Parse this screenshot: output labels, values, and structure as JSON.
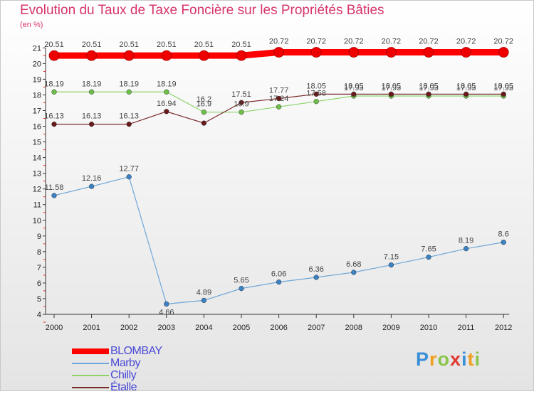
{
  "header": {
    "title": "Evolution du Taux de Taxe Foncière sur les Propriétés Bâties",
    "subtitle": "(en %)"
  },
  "chart_data": {
    "type": "line",
    "title": "Evolution du Taux de Taxe Foncière sur les Propriétés Bâties",
    "ylabel": "(en %)",
    "xlabel": "",
    "ylim": [
      4,
      21
    ],
    "yticks": [
      4,
      5,
      6,
      7,
      8,
      9,
      10,
      11,
      12,
      13,
      14,
      15,
      16,
      17,
      18,
      19,
      20,
      21
    ],
    "categories": [
      "2000",
      "2001",
      "2002",
      "2003",
      "2004",
      "2005",
      "2006",
      "2007",
      "2008",
      "2009",
      "2010",
      "2011",
      "2012"
    ],
    "series": [
      {
        "name": "BLOMBAY",
        "color": "#ff0000",
        "values": [
          20.51,
          20.51,
          20.51,
          20.51,
          20.51,
          20.51,
          20.72,
          20.72,
          20.72,
          20.72,
          20.72,
          20.72,
          20.72
        ],
        "labels": [
          "20.51",
          "20.51",
          "20.51",
          "20.51",
          "20.51",
          "20.51",
          "20.72",
          "20.72",
          "20.72",
          "20.72",
          "20.72",
          "20.72",
          "20.72"
        ]
      },
      {
        "name": "Marby",
        "color": "#6ea6d8",
        "marker": "#3a82c4",
        "values": [
          11.58,
          12.16,
          12.77,
          4.66,
          4.89,
          5.65,
          6.06,
          6.36,
          6.68,
          7.15,
          7.65,
          8.19,
          8.6
        ],
        "labels": [
          "11.58",
          "12.16",
          "12.77",
          "4.66",
          "4.89",
          "5.65",
          "6.06",
          "6.36",
          "6.68",
          "7.15",
          "7.65",
          "8.19",
          "8.6"
        ]
      },
      {
        "name": "Chilly",
        "color": "#8cd46a",
        "marker": "#6cc048",
        "values": [
          18.19,
          18.19,
          18.19,
          18.19,
          16.9,
          16.9,
          17.24,
          17.58,
          17.93,
          17.93,
          17.93,
          17.93,
          17.93
        ],
        "labels": [
          "18.19",
          "18.19",
          "18.19",
          "18.19",
          "16.9",
          "16.9",
          "17.24",
          "17.58",
          "17.93",
          "17.93",
          "17.93",
          "17.93",
          "17.93"
        ]
      },
      {
        "name": "Étalle",
        "color": "#7a2a2a",
        "marker": "#6a1a1a",
        "values": [
          16.13,
          16.13,
          16.13,
          16.94,
          16.2,
          17.51,
          17.77,
          18.05,
          18.05,
          18.05,
          18.05,
          18.05,
          18.05
        ],
        "labels": [
          "16.13",
          "16.13",
          "16.13",
          "16.94",
          "16.2",
          "17.51",
          "17.77",
          "18.05",
          "18.05",
          "18.05",
          "18.05",
          "18.05",
          "18.05"
        ]
      }
    ],
    "legend": "bottom-left"
  },
  "logo": {
    "letters": [
      "P",
      "r",
      "o",
      "x",
      "i",
      "t",
      "i"
    ],
    "colors": [
      "#3a8fd8",
      "#f0a020",
      "#8ac64a",
      "#e03a30",
      "#3a8fd8",
      "#f0a020",
      "#8ac64a"
    ]
  }
}
